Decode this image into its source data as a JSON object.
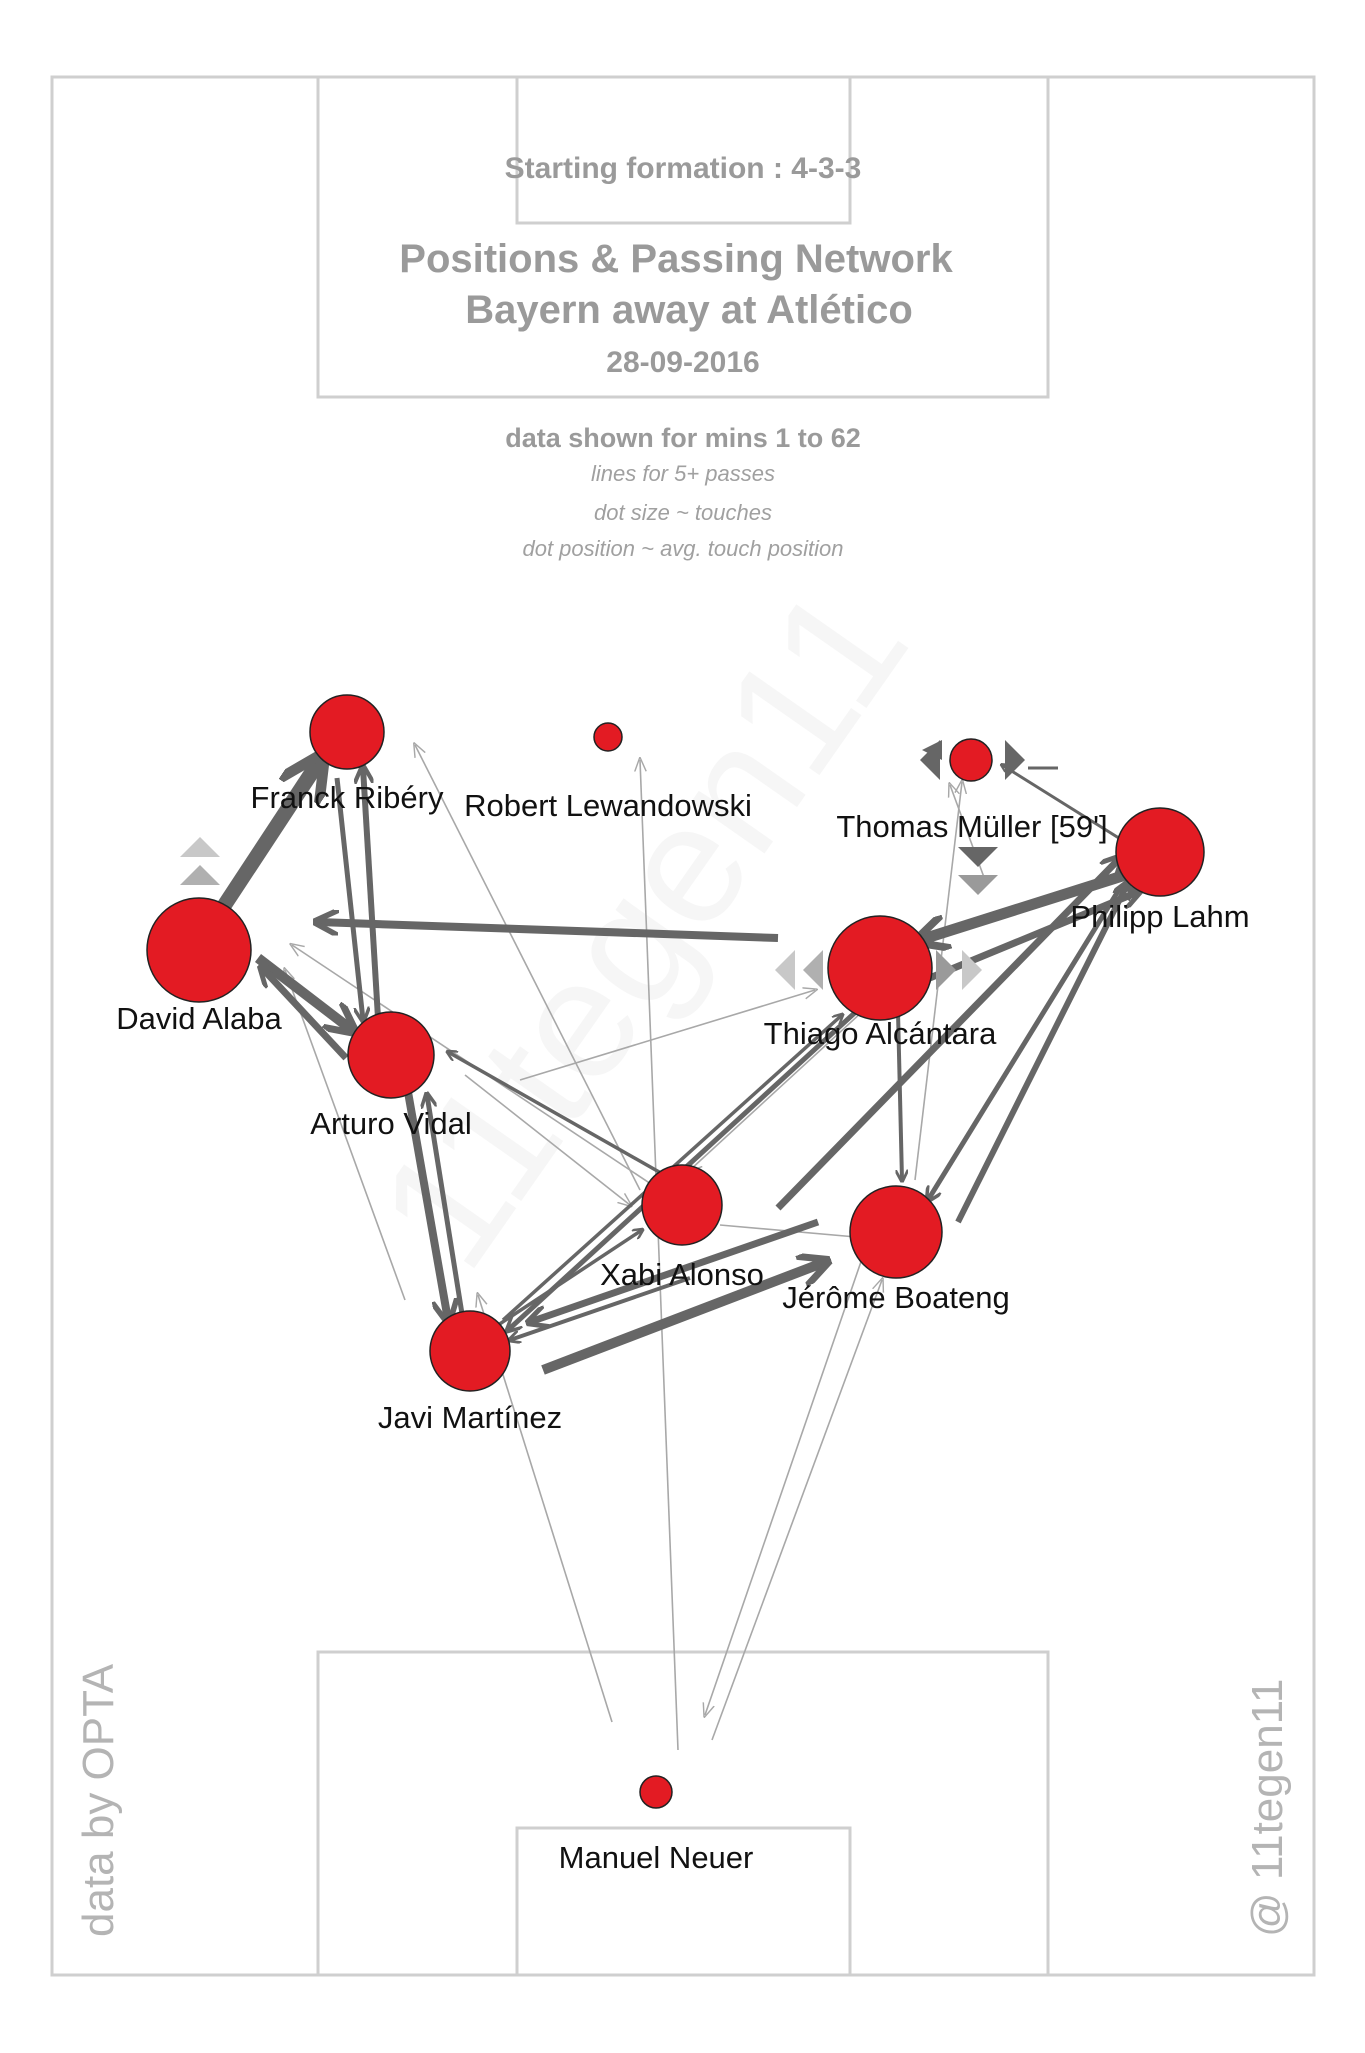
{
  "header": {
    "formation": "Starting formation : 4-3-3",
    "title_line1": "Positions & Passing Network",
    "title_line2": "Bayern  away at  Atlético",
    "date": "28-09-2016"
  },
  "notes": {
    "minutes": "data shown for mins 1 to 62",
    "lines_note": "lines for 5+ passes",
    "dot_size_note": "dot size ~ touches",
    "dot_position_note": "dot position ~ avg. touch position"
  },
  "credits": {
    "source": "data by OPTA",
    "author": "@ 11tegen11",
    "watermark": "11tegen11"
  },
  "colors": {
    "node": "#e31b23",
    "edge_strong": "#666666",
    "edge_weak": "#a8a8a8",
    "pitch_lines": "#cfcfcf",
    "text_muted": "#9a9a9a"
  },
  "players": [
    {
      "id": "ribery",
      "name": "Franck Ribéry"
    },
    {
      "id": "lewandowski",
      "name": "Robert Lewandowski"
    },
    {
      "id": "muller",
      "name": "Thomas Müller [59']"
    },
    {
      "id": "lahm",
      "name": "Philipp Lahm"
    },
    {
      "id": "alaba",
      "name": "David Alaba"
    },
    {
      "id": "thiago",
      "name": "Thiago Alcántara"
    },
    {
      "id": "vidal",
      "name": "Arturo Vidal"
    },
    {
      "id": "alonso",
      "name": "Xabi Alonso"
    },
    {
      "id": "boateng",
      "name": "Jérôme Boateng"
    },
    {
      "id": "martinez",
      "name": "Javi Martínez"
    },
    {
      "id": "neuer",
      "name": "Manuel Neuer"
    }
  ]
}
